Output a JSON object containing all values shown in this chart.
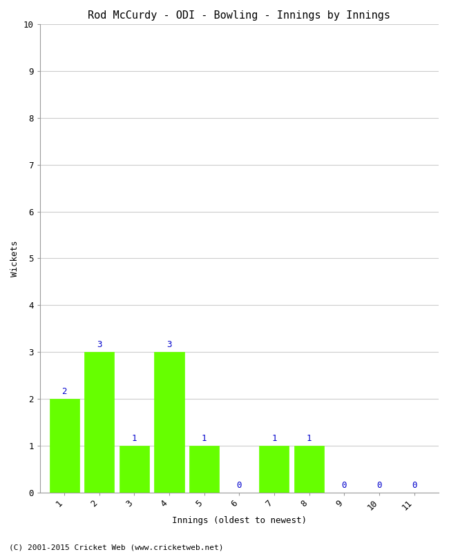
{
  "title": "Rod McCurdy - ODI - Bowling - Innings by Innings",
  "xlabel": "Innings (oldest to newest)",
  "ylabel": "Wickets",
  "innings": [
    1,
    2,
    3,
    4,
    5,
    6,
    7,
    8,
    9,
    10,
    11
  ],
  "wickets": [
    2,
    3,
    1,
    3,
    1,
    0,
    1,
    1,
    0,
    0,
    0
  ],
  "bar_color": "#66ff00",
  "bar_edge_color": "#66ff00",
  "label_color": "#0000cc",
  "ylim": [
    0,
    10
  ],
  "yticks": [
    0,
    1,
    2,
    3,
    4,
    5,
    6,
    7,
    8,
    9,
    10
  ],
  "background_color": "#ffffff",
  "plot_bg_color": "#ffffff",
  "grid_color": "#cccccc",
  "footer": "(C) 2001-2015 Cricket Web (www.cricketweb.net)",
  "title_fontsize": 11,
  "label_fontsize": 9,
  "tick_fontsize": 9,
  "annotation_fontsize": 9,
  "footer_fontsize": 8,
  "bar_width": 0.85,
  "xlim": [
    0.3,
    11.7
  ],
  "xtick_rotation": 45
}
